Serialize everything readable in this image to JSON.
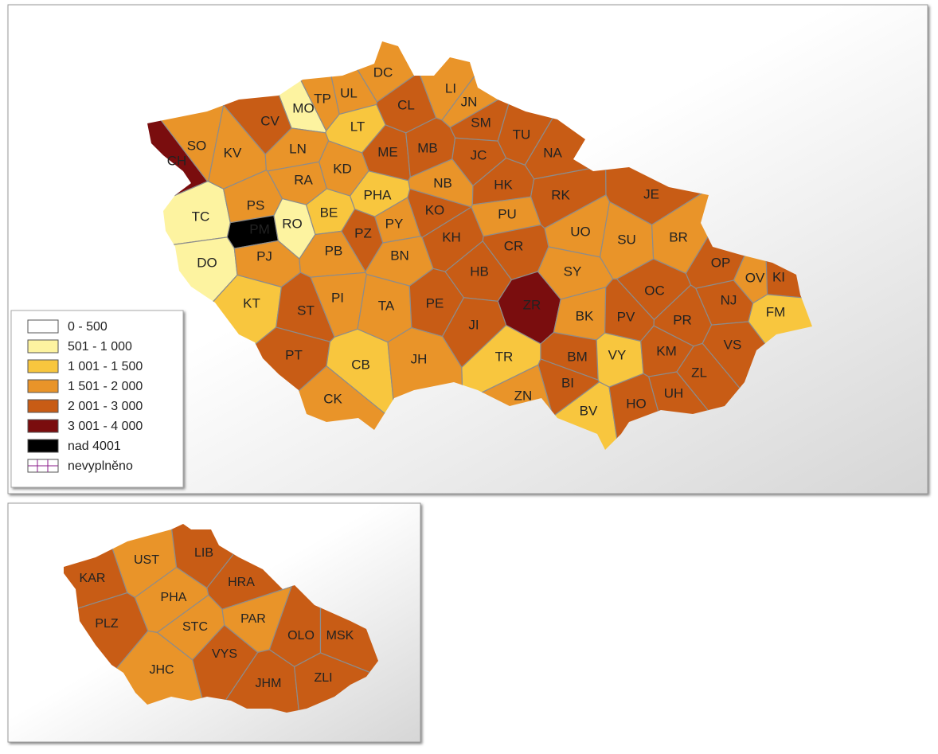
{
  "map": {
    "districts": [
      {
        "code": "DC",
        "class": 3
      },
      {
        "code": "CL",
        "class": 4
      },
      {
        "code": "LI",
        "class": 3
      },
      {
        "code": "JN",
        "class": 3
      },
      {
        "code": "SM",
        "class": 4
      },
      {
        "code": "TU",
        "class": 4
      },
      {
        "code": "NA",
        "class": 4
      },
      {
        "code": "MO",
        "class": 1
      },
      {
        "code": "TP",
        "class": 3
      },
      {
        "code": "UL",
        "class": 3
      },
      {
        "code": "CV",
        "class": 4
      },
      {
        "code": "LT",
        "class": 2
      },
      {
        "code": "CH",
        "class": 5
      },
      {
        "code": "SO",
        "class": 3
      },
      {
        "code": "KV",
        "class": 3
      },
      {
        "code": "LN",
        "class": 3
      },
      {
        "code": "ME",
        "class": 4
      },
      {
        "code": "MB",
        "class": 4
      },
      {
        "code": "JC",
        "class": 4
      },
      {
        "code": "RA",
        "class": 3
      },
      {
        "code": "KD",
        "class": 3
      },
      {
        "code": "PHA",
        "class": 2
      },
      {
        "code": "NB",
        "class": 3
      },
      {
        "code": "HK",
        "class": 4
      },
      {
        "code": "RK",
        "class": 4
      },
      {
        "code": "JE",
        "class": 4
      },
      {
        "code": "TC",
        "class": 1
      },
      {
        "code": "PS",
        "class": 3
      },
      {
        "code": "PM",
        "class": 6
      },
      {
        "code": "RO",
        "class": 1
      },
      {
        "code": "BE",
        "class": 2
      },
      {
        "code": "PY",
        "class": 3
      },
      {
        "code": "KO",
        "class": 4
      },
      {
        "code": "PU",
        "class": 3
      },
      {
        "code": "UO",
        "class": 3
      },
      {
        "code": "SU",
        "class": 3
      },
      {
        "code": "BR",
        "class": 3
      },
      {
        "code": "DO",
        "class": 1
      },
      {
        "code": "PJ",
        "class": 3
      },
      {
        "code": "PZ",
        "class": 4
      },
      {
        "code": "PB",
        "class": 3
      },
      {
        "code": "BN",
        "class": 3
      },
      {
        "code": "KH",
        "class": 4
      },
      {
        "code": "CR",
        "class": 4
      },
      {
        "code": "SY",
        "class": 3
      },
      {
        "code": "OP",
        "class": 4
      },
      {
        "code": "OV",
        "class": 3
      },
      {
        "code": "KI",
        "class": 4
      },
      {
        "code": "KT",
        "class": 2
      },
      {
        "code": "ST",
        "class": 4
      },
      {
        "code": "PI",
        "class": 3
      },
      {
        "code": "TA",
        "class": 3
      },
      {
        "code": "PE",
        "class": 4
      },
      {
        "code": "HB",
        "class": 4
      },
      {
        "code": "ZR",
        "class": 5
      },
      {
        "code": "BK",
        "class": 3
      },
      {
        "code": "OC",
        "class": 4
      },
      {
        "code": "NJ",
        "class": 4
      },
      {
        "code": "FM",
        "class": 2
      },
      {
        "code": "PV",
        "class": 4
      },
      {
        "code": "PR",
        "class": 4
      },
      {
        "code": "PT",
        "class": 4
      },
      {
        "code": "JI",
        "class": 4
      },
      {
        "code": "TR",
        "class": 2
      },
      {
        "code": "BM",
        "class": 4
      },
      {
        "code": "VY",
        "class": 2
      },
      {
        "code": "KM",
        "class": 4
      },
      {
        "code": "VS",
        "class": 4
      },
      {
        "code": "CB",
        "class": 2
      },
      {
        "code": "JH",
        "class": 3
      },
      {
        "code": "ZL",
        "class": 4
      },
      {
        "code": "UH",
        "class": 4
      },
      {
        "code": "BI",
        "class": 4
      },
      {
        "code": "CK",
        "class": 3
      },
      {
        "code": "ZN",
        "class": 3
      },
      {
        "code": "BV",
        "class": 2
      },
      {
        "code": "HO",
        "class": 4
      }
    ],
    "regions": [
      {
        "code": "UST",
        "class": 3
      },
      {
        "code": "LIB",
        "class": 4
      },
      {
        "code": "KAR",
        "class": 4
      },
      {
        "code": "HRA",
        "class": 4
      },
      {
        "code": "PHA",
        "class": 3
      },
      {
        "code": "STC",
        "class": 3
      },
      {
        "code": "PLZ",
        "class": 4
      },
      {
        "code": "PAR",
        "class": 3
      },
      {
        "code": "OLO",
        "class": 4
      },
      {
        "code": "MSK",
        "class": 4
      },
      {
        "code": "VYS",
        "class": 4
      },
      {
        "code": "JHC",
        "class": 3
      },
      {
        "code": "JHM",
        "class": 4
      },
      {
        "code": "ZLI",
        "class": 4
      }
    ]
  },
  "legend": [
    {
      "label": "0 - 500",
      "color": "#ffffff"
    },
    {
      "label": "501 - 1 000",
      "color": "#fdf3a0"
    },
    {
      "label": "1 001 - 1 500",
      "color": "#f8c63e"
    },
    {
      "label": "1 501 - 2 000",
      "color": "#e99429"
    },
    {
      "label": "2 001 - 3 000",
      "color": "#c85c15"
    },
    {
      "label": "3 001 - 4 000",
      "color": "#7a0d0e"
    },
    {
      "label": "nad 4001",
      "color": "#000000"
    },
    {
      "label": "nevyplněno",
      "color": "#8a1a8a"
    }
  ]
}
